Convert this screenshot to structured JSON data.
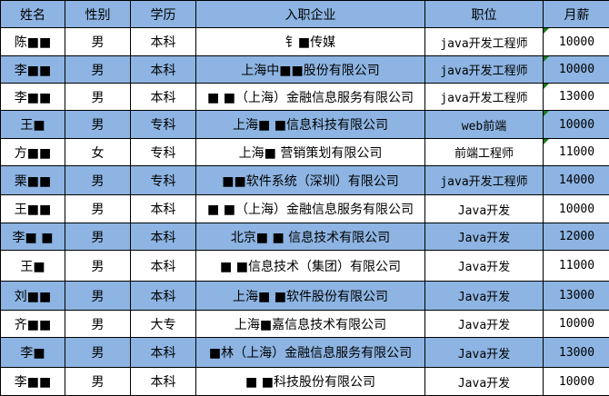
{
  "colors": {
    "header_bg": "#8db4e2",
    "stripe_bg": "#8db4e2",
    "row_bg": "#ffffff",
    "comment_marker": "#1a7a1a"
  },
  "headers": [
    "姓名",
    "性别",
    "学历",
    "入职企业",
    "职位",
    "月薪"
  ],
  "rows": [
    {
      "name": "陈■■",
      "gender": "男",
      "edu": "本科",
      "company": "钅■传媒",
      "position": "java开发工程师",
      "salary": "10000",
      "marker": true
    },
    {
      "name": "李■■",
      "gender": "男",
      "edu": "本科",
      "company": "上海中■■股份有限公司",
      "position": "java开发工程师",
      "salary": "10000",
      "marker": true
    },
    {
      "name": "李■■",
      "gender": "男",
      "edu": "本科",
      "company": "■ ■（上海）金融信息服务有限公司",
      "position": "java开发工程师",
      "salary": "13000",
      "marker": true
    },
    {
      "name": "王■",
      "gender": "男",
      "edu": "专科",
      "company": "上海■ ■信息科技有限公司",
      "position": "web前端",
      "salary": "10000",
      "marker": true
    },
    {
      "name": "方■■",
      "gender": "女",
      "edu": "专科",
      "company": "上海■    营销策划有限公司",
      "position": "前端工程师",
      "salary": "11000",
      "marker": true
    },
    {
      "name": "栗■■",
      "gender": "男",
      "edu": "专科",
      "company": "■■软件系统（深圳）有限公司",
      "position": "java开发工程师",
      "salary": "14000",
      "marker": false
    },
    {
      "name": "王■■",
      "gender": "男",
      "edu": "本科",
      "company": "■ ■（上海）金融信息服务有限公司",
      "position": "Java开发",
      "salary": "10000",
      "marker": false
    },
    {
      "name": "李■ ■",
      "gender": "男",
      "edu": "本科",
      "company": "北京■ ■    信息技术有限公司",
      "position": "Java开发",
      "salary": "12000",
      "marker": false
    },
    {
      "name": "王■",
      "gender": "男",
      "edu": "本科",
      "company": "■  ■信息技术（集团）有限公司",
      "position": "Java开发",
      "salary": "11000",
      "marker": false
    },
    {
      "name": "刘■■",
      "gender": "男",
      "edu": "本科",
      "company": "上海■ ■软件股份有限公司",
      "position": "Java开发",
      "salary": "13000",
      "marker": false
    },
    {
      "name": "齐■■",
      "gender": "男",
      "edu": "大专",
      "company": "上海■嘉信息技术有限公司",
      "position": "Java开发",
      "salary": "10000",
      "marker": false
    },
    {
      "name": "李■",
      "gender": "男",
      "edu": "本科",
      "company": "■林（上海）金融信息服务有限公司",
      "position": "Java开发",
      "salary": "13000",
      "marker": false
    },
    {
      "name": "李■■",
      "gender": "男",
      "edu": "本科",
      "company": "■ ■科技股份有限公司",
      "position": "Java开发",
      "salary": "10000",
      "marker": false
    }
  ]
}
